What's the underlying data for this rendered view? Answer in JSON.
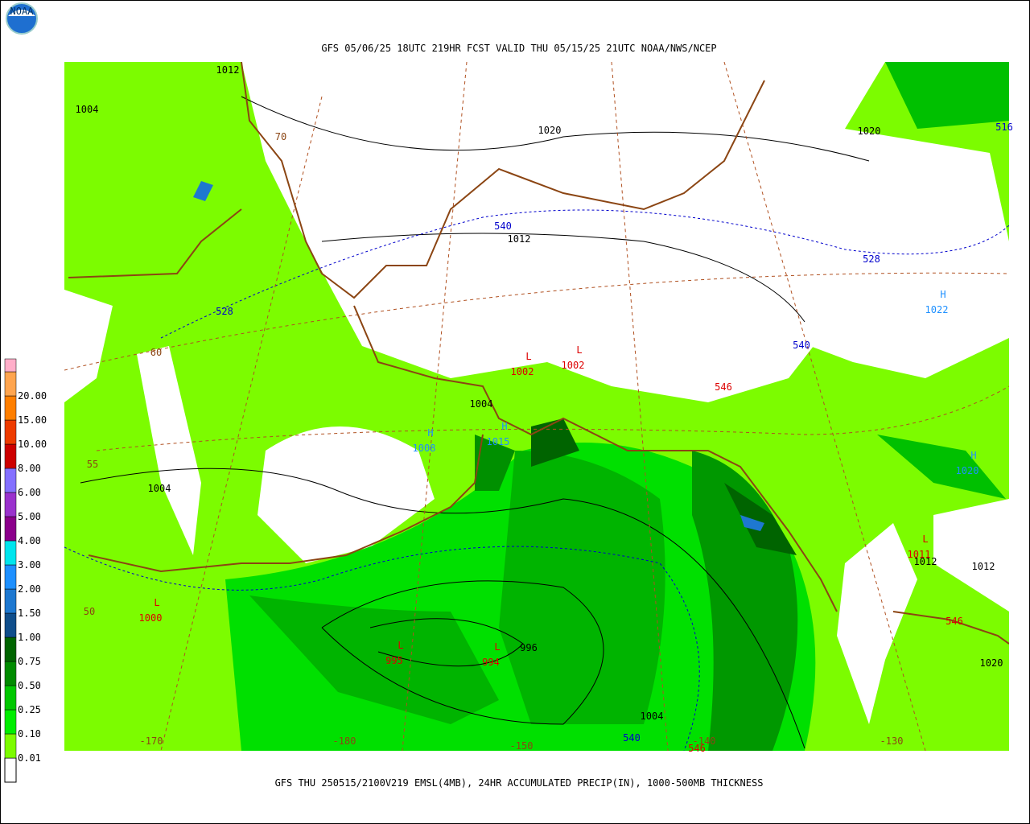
{
  "header": {
    "title": "GFS 05/06/25 18UTC 219HR FCST VALID THU 05/15/25 21UTC NOAA/NWS/NCEP",
    "logo": "NOAA"
  },
  "footer": {
    "caption": "GFS THU 250515/2100V219 EMSL(4MB), 24HR ACCUMULATED PRECIP(IN), 1000-500MB THICKNESS"
  },
  "legend": {
    "items": [
      {
        "label": "0.01",
        "color": "#7cfc00"
      },
      {
        "label": "0.10",
        "color": "#00ee00"
      },
      {
        "label": "0.25",
        "color": "#00c800"
      },
      {
        "label": "0.50",
        "color": "#008b00"
      },
      {
        "label": "0.75",
        "color": "#006400"
      },
      {
        "label": "1.00",
        "color": "#104e8b"
      },
      {
        "label": "1.50",
        "color": "#1e78d0"
      },
      {
        "label": "2.00",
        "color": "#1e90ff"
      },
      {
        "label": "3.00",
        "color": "#00e5ee"
      },
      {
        "label": "4.00",
        "color": "#8b008b"
      },
      {
        "label": "5.00",
        "color": "#9a32cd"
      },
      {
        "label": "6.00",
        "color": "#8470ff"
      },
      {
        "label": "8.00",
        "color": "#cd0000"
      },
      {
        "label": "10.00",
        "color": "#ee3b00"
      },
      {
        "label": "15.00",
        "color": "#ff7f00"
      },
      {
        "label": "20.00",
        "color": "#ffa54f"
      }
    ],
    "top_color": "#ffaec9",
    "bottom_color": "#ffffff"
  },
  "map": {
    "isobars": [
      "1012",
      "1004",
      "1020",
      "1020",
      "1012",
      "1004",
      "1004",
      "1012",
      "1012",
      "1020",
      "996",
      "1004"
    ],
    "thickness": [
      "540",
      "528",
      "528",
      "540",
      "540",
      "516"
    ],
    "thickness_546": [
      "546",
      "546",
      "546"
    ],
    "graticule": [
      "70",
      "60",
      "55",
      "50",
      "-170",
      "-180",
      "-150",
      "-140",
      "-130"
    ],
    "lows": [
      {
        "symbol": "L",
        "pressure": "1002"
      },
      {
        "symbol": "L",
        "pressure": "1002"
      },
      {
        "symbol": "L",
        "pressure": "1000"
      },
      {
        "symbol": "L",
        "pressure": "995"
      },
      {
        "symbol": "L",
        "pressure": "994"
      },
      {
        "symbol": "L",
        "pressure": "1011"
      }
    ],
    "highs": [
      {
        "symbol": "H",
        "pressure": "1022"
      },
      {
        "symbol": "H",
        "pressure": "1008"
      },
      {
        "symbol": "H",
        "pressure": "1015"
      },
      {
        "symbol": "H",
        "pressure": "1020"
      }
    ]
  }
}
